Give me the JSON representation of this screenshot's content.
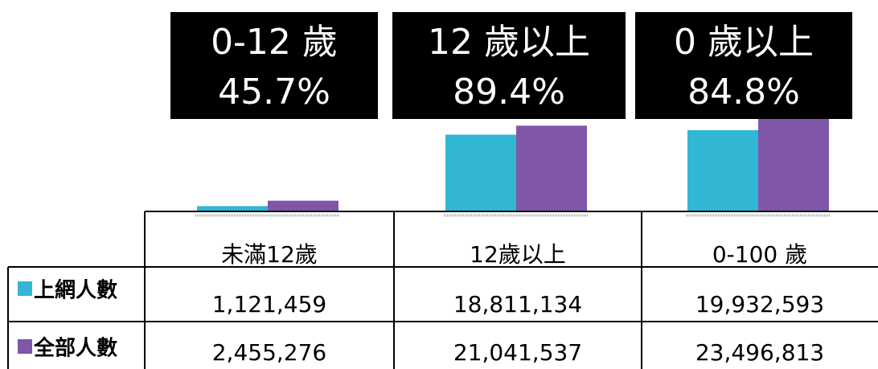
{
  "chart_data": {
    "type": "bar",
    "categories": [
      "未滿12歲",
      "12歲以上",
      "0-100  歲"
    ],
    "series": [
      {
        "name": "上網人數",
        "color": "#31b6d4",
        "values": [
          1121459,
          18811134,
          19932593
        ],
        "value_labels": [
          "1,121,459",
          "18,811,134",
          "19,932,593"
        ]
      },
      {
        "name": "全部人數",
        "color": "#7f56a8",
        "values": [
          2455276,
          21041537,
          23496813
        ],
        "value_labels": [
          "2,455,276",
          "21,041,537",
          "23,496,813"
        ]
      }
    ],
    "annotations": [
      {
        "title": "0-12 歲",
        "value": 45.7,
        "value_label": "45.7%"
      },
      {
        "title": "12 歲以上",
        "value": 89.4,
        "value_label": "89.4%"
      },
      {
        "title": "0 歲以上",
        "value": 84.8,
        "value_label": "84.8%"
      }
    ]
  }
}
